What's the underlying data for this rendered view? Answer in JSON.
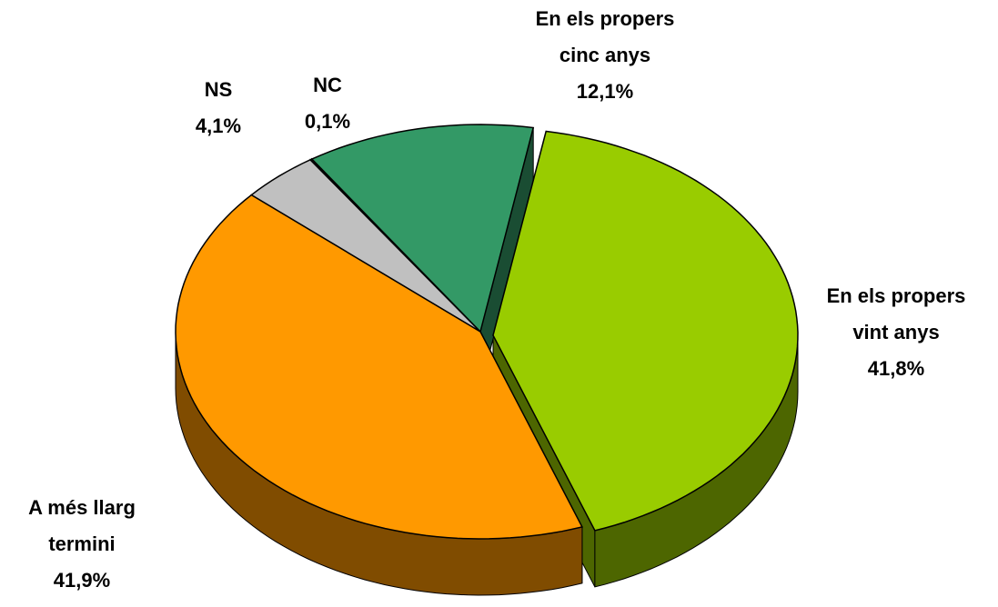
{
  "chart_data": {
    "type": "pie",
    "categories": [
      "En els propers\nvint anys",
      "A més llarg\ntermini",
      "NS",
      "NC",
      "En els propers\ncinc anys"
    ],
    "values": [
      41.8,
      41.9,
      4.1,
      0.1,
      12.1
    ],
    "value_labels": [
      "41,8%",
      "41,9%",
      "4,1%",
      "0,1%",
      "12,1%"
    ],
    "colors": [
      "#99cc00",
      "#ff9900",
      "#c0c0c0",
      "#333333",
      "#339966"
    ],
    "side_colors": [
      "#4d6600",
      "#804c00",
      "#606060",
      "#1a1a1a",
      "#1a4d33"
    ]
  }
}
